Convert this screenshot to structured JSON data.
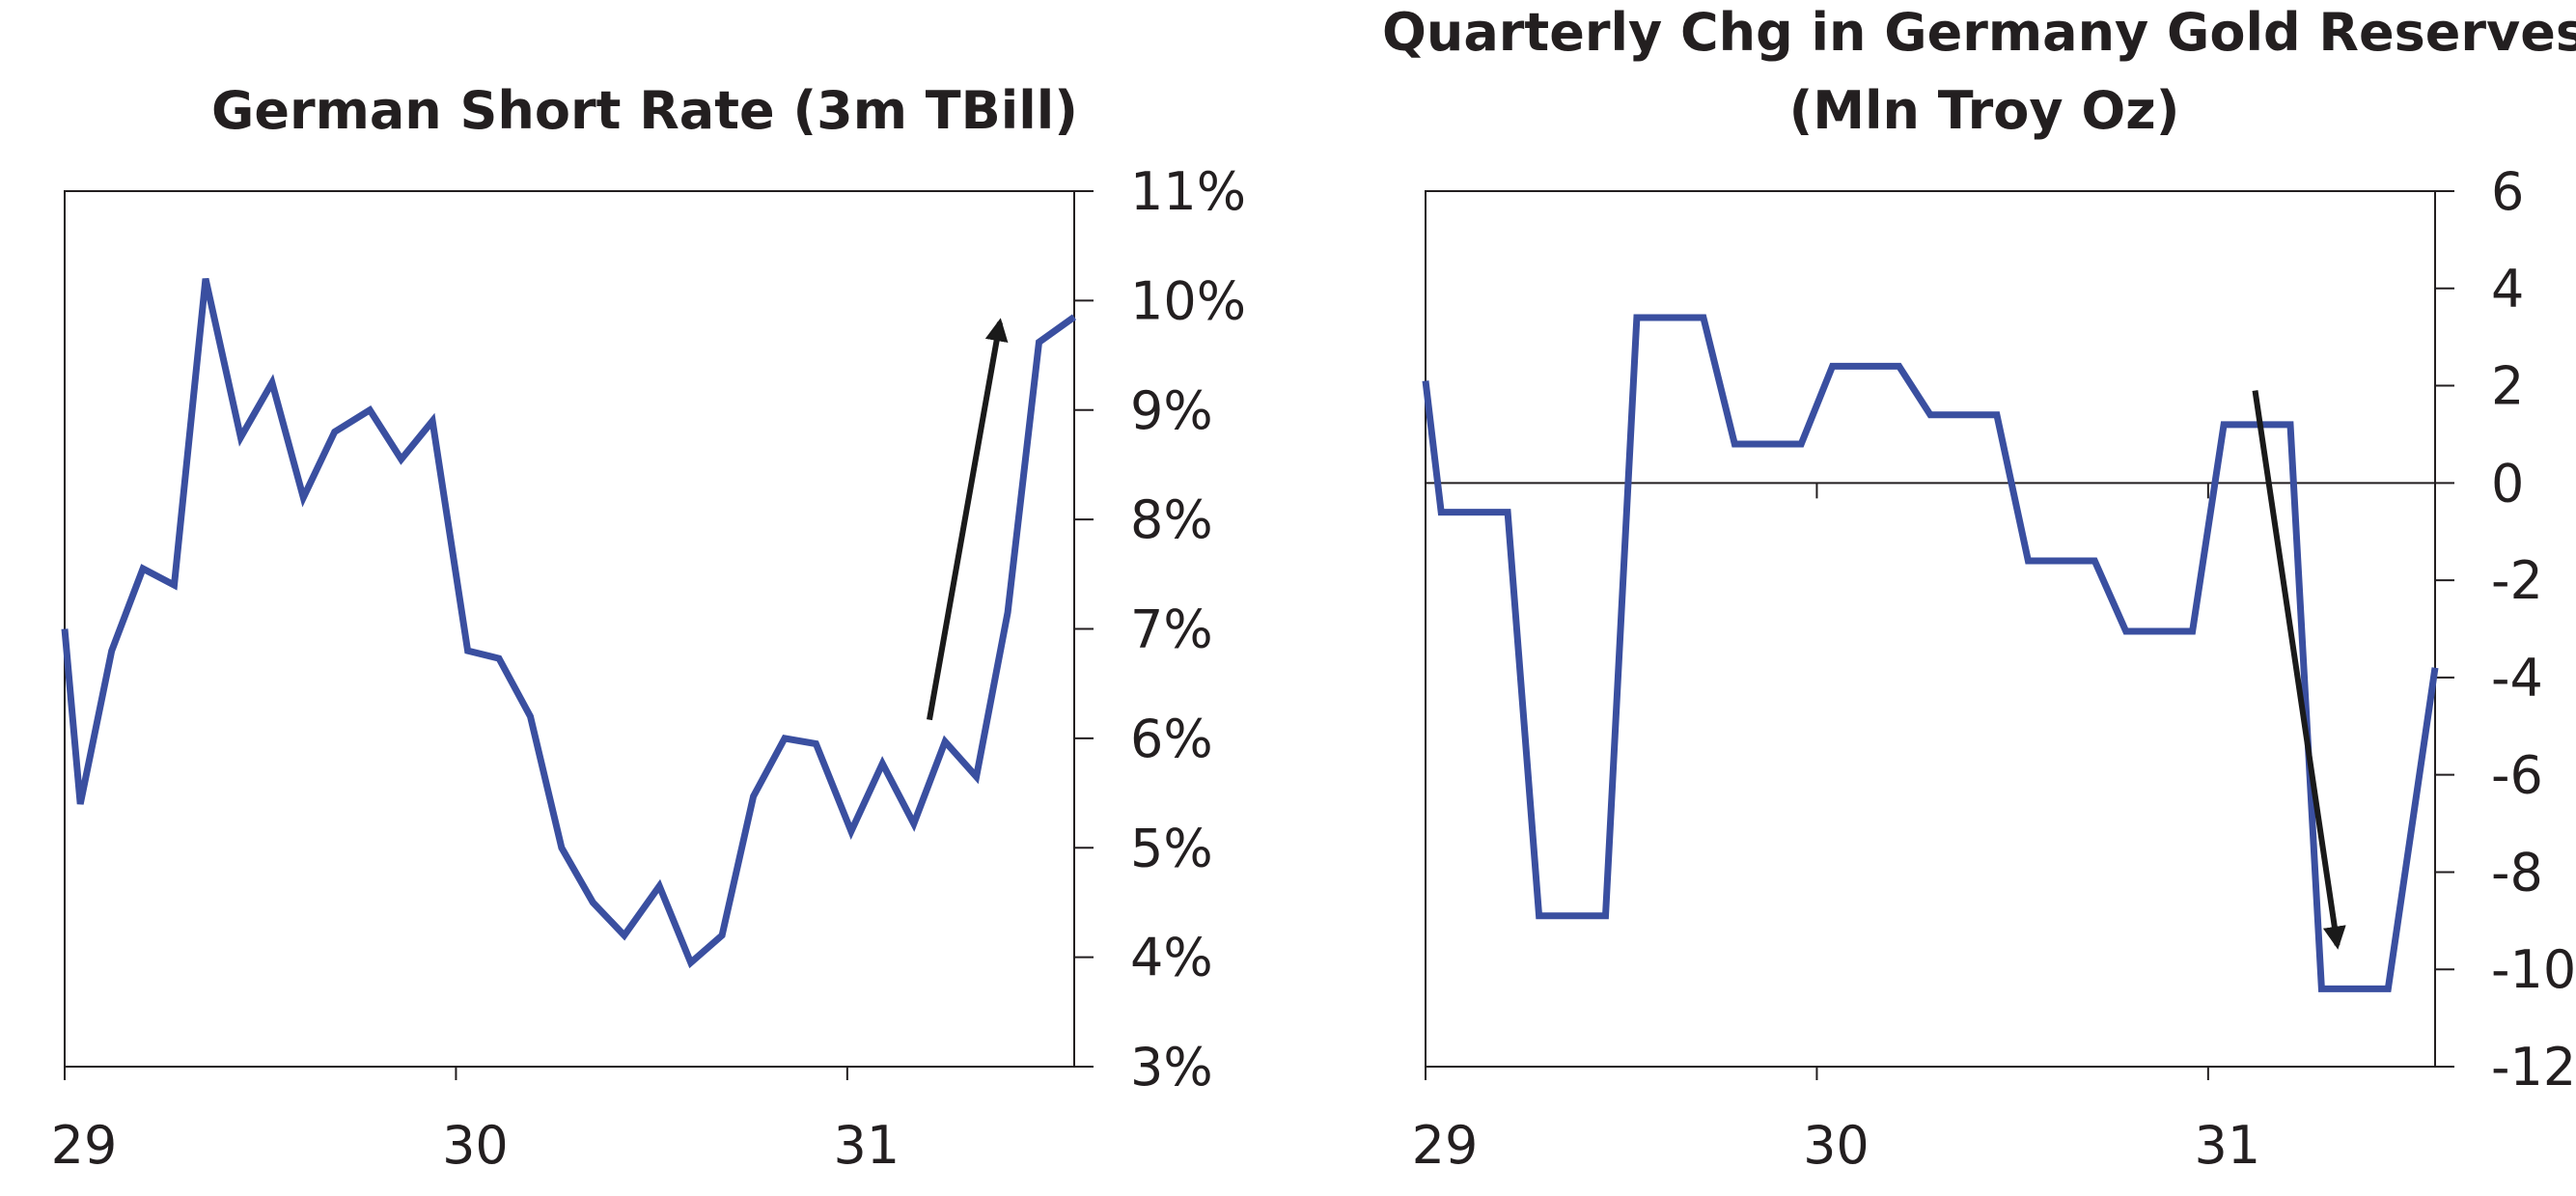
{
  "chart_data": [
    {
      "type": "line",
      "title": "German Short Rate (3m TBill)",
      "xlabel": "",
      "ylabel": "",
      "x_ticks": [
        {
          "value": 1929.0,
          "label": "29"
        },
        {
          "value": 1930.0,
          "label": "30"
        },
        {
          "value": 1931.0,
          "label": "31"
        }
      ],
      "xlim": [
        1929.0,
        1931.58
      ],
      "ylim": [
        3,
        11
      ],
      "y_ticks": [
        {
          "value": 11,
          "label": "11%"
        },
        {
          "value": 10,
          "label": "10%"
        },
        {
          "value": 9,
          "label": "9%"
        },
        {
          "value": 8,
          "label": "8%"
        },
        {
          "value": 7,
          "label": "7%"
        },
        {
          "value": 6,
          "label": "6%"
        },
        {
          "value": 5,
          "label": "5%"
        },
        {
          "value": 4,
          "label": "4%"
        },
        {
          "value": 3,
          "label": "3%"
        }
      ],
      "y_axis_side": "right",
      "grid": false,
      "series": [
        {
          "color": "#3a4fa0",
          "points": [
            [
              1929.0,
              7.0
            ],
            [
              1929.04,
              5.4
            ],
            [
              1929.12,
              6.8
            ],
            [
              1929.2,
              7.55
            ],
            [
              1929.28,
              7.4
            ],
            [
              1929.36,
              10.2
            ],
            [
              1929.45,
              8.75
            ],
            [
              1929.53,
              9.25
            ],
            [
              1929.61,
              8.2
            ],
            [
              1929.69,
              8.8
            ],
            [
              1929.78,
              9.0
            ],
            [
              1929.86,
              8.55
            ],
            [
              1929.94,
              8.9
            ],
            [
              1930.03,
              6.8
            ],
            [
              1930.11,
              6.73
            ],
            [
              1930.19,
              6.2
            ],
            [
              1930.27,
              5.0
            ],
            [
              1930.35,
              4.5
            ],
            [
              1930.43,
              4.2
            ],
            [
              1930.52,
              4.65
            ],
            [
              1930.6,
              3.95
            ],
            [
              1930.68,
              4.2
            ],
            [
              1930.76,
              5.47
            ],
            [
              1930.84,
              6.0
            ],
            [
              1930.92,
              5.95
            ],
            [
              1931.01,
              5.15
            ],
            [
              1931.09,
              5.77
            ],
            [
              1931.17,
              5.22
            ],
            [
              1931.25,
              5.97
            ],
            [
              1931.33,
              5.65
            ],
            [
              1931.41,
              7.15
            ],
            [
              1931.49,
              9.62
            ],
            [
              1931.58,
              9.85
            ]
          ]
        }
      ],
      "annotation": {
        "type": "arrow",
        "from": [
          1931.21,
          6.17
        ],
        "to": [
          1931.39,
          9.8
        ],
        "color": "#1a1a1a"
      }
    },
    {
      "type": "line",
      "title": "Quarterly Chg in Germany Gold Reserves",
      "subtitle": "(Mln Troy Oz)",
      "xlabel": "",
      "ylabel": "",
      "x_ticks": [
        {
          "value": 1929.0,
          "label": "29"
        },
        {
          "value": 1930.0,
          "label": "30"
        },
        {
          "value": 1931.0,
          "label": "31"
        }
      ],
      "xlim": [
        1929.0,
        1931.58
      ],
      "ylim": [
        -12,
        6
      ],
      "y_ticks": [
        {
          "value": 6,
          "label": "6"
        },
        {
          "value": 4,
          "label": "4"
        },
        {
          "value": 2,
          "label": "2"
        },
        {
          "value": 0,
          "label": "0"
        },
        {
          "value": -2,
          "label": "-2"
        },
        {
          "value": -4,
          "label": "-4"
        },
        {
          "value": -6,
          "label": "-6"
        },
        {
          "value": -8,
          "label": "-8"
        },
        {
          "value": -10,
          "label": "-10"
        },
        {
          "value": -12,
          "label": "-12"
        }
      ],
      "y_axis_side": "right",
      "zero_line": true,
      "grid": false,
      "series": [
        {
          "color": "#3a4fa0",
          "points": [
            [
              1929.0,
              2.1
            ],
            [
              1929.04,
              -0.6
            ],
            [
              1929.21,
              -0.6
            ],
            [
              1929.29,
              -8.9
            ],
            [
              1929.46,
              -8.9
            ],
            [
              1929.54,
              3.4
            ],
            [
              1929.71,
              3.4
            ],
            [
              1929.79,
              0.8
            ],
            [
              1929.96,
              0.8
            ],
            [
              1930.04,
              2.4
            ],
            [
              1930.21,
              2.4
            ],
            [
              1930.29,
              1.4
            ],
            [
              1930.46,
              1.4
            ],
            [
              1930.54,
              -1.6
            ],
            [
              1930.71,
              -1.6
            ],
            [
              1930.79,
              -3.05
            ],
            [
              1930.96,
              -3.05
            ],
            [
              1931.04,
              1.2
            ],
            [
              1931.21,
              1.2
            ],
            [
              1931.29,
              -10.4
            ],
            [
              1931.46,
              -10.4
            ],
            [
              1931.58,
              -3.8
            ]
          ]
        }
      ],
      "annotation": {
        "type": "arrow",
        "from": [
          1931.12,
          1.9
        ],
        "to": [
          1931.33,
          -9.5
        ],
        "color": "#1a1a1a"
      }
    }
  ]
}
